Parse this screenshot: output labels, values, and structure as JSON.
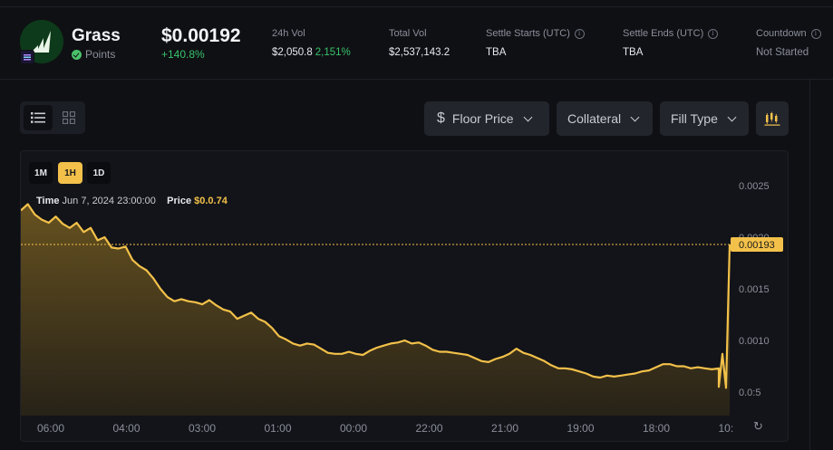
{
  "token": {
    "name": "Grass",
    "sub_label": "Points",
    "price": "$0.00192",
    "change": "+140.8%"
  },
  "stats": [
    {
      "label": "24h Vol",
      "value": "$2,050.8",
      "extra": "2,151%",
      "info": false
    },
    {
      "label": "Total Vol",
      "value": "$2,537,143.2",
      "extra": "",
      "info": false
    },
    {
      "label": "Settle Starts (UTC)",
      "value": "TBA",
      "extra": "",
      "info": true
    },
    {
      "label": "Settle Ends (UTC)",
      "value": "TBA",
      "extra": "",
      "info": true
    },
    {
      "label": "Countdown",
      "value": "Not Started",
      "extra": "",
      "info": true
    }
  ],
  "toolbar": {
    "floor_price": "Floor Price",
    "collateral": "Collateral",
    "fill_type": "Fill Type",
    "icons": {
      "list": "list-view-icon",
      "grid": "grid-view-icon",
      "dollar": "dollar-icon",
      "chart": "candlestick-chart-icon"
    }
  },
  "timeframes": [
    {
      "label": "1M",
      "active": false
    },
    {
      "label": "1H",
      "active": true
    },
    {
      "label": "1D",
      "active": false
    }
  ],
  "tooltip": {
    "time_label": "Time",
    "time_value": "Jun 7, 2024 23:00:00",
    "price_label": "Price",
    "price_value": "$0.0.74"
  },
  "colors": {
    "line": "#f3c14a",
    "positive": "#37c26a",
    "background": "#0f1014"
  },
  "chart_data": {
    "type": "area",
    "y_ticks": [
      "0.0025",
      "0.0020",
      "0.0015",
      "0.0010",
      "0.0:5"
    ],
    "y_tick_values": [
      0.0025,
      0.002,
      0.0015,
      0.001,
      0.0005
    ],
    "ylim": [
      0.0003,
      0.0027
    ],
    "x_ticks": [
      "06:00",
      "04:00",
      "03:00",
      "01:00",
      "00:00",
      "22:00",
      "21:00",
      "19:00",
      "18:00",
      "10:"
    ],
    "current_price_label": "0.00193",
    "current_price": 0.00193,
    "series": [
      {
        "values": [
          0.00226,
          0.00232,
          0.00222,
          0.00217,
          0.00214,
          0.0022,
          0.00213,
          0.00209,
          0.00214,
          0.00205,
          0.00209,
          0.00197,
          0.002,
          0.0019,
          0.00189,
          0.00191,
          0.00178,
          0.00172,
          0.00168,
          0.0016,
          0.0015,
          0.00142,
          0.00138,
          0.0014,
          0.00138,
          0.00137,
          0.00135,
          0.00139,
          0.00134,
          0.0013,
          0.00128,
          0.00121,
          0.00124,
          0.00127,
          0.00121,
          0.00118,
          0.00112,
          0.00104,
          0.00101,
          0.00097,
          0.00095,
          0.00097,
          0.00096,
          0.00092,
          0.00088,
          0.00087,
          0.00087,
          0.00089,
          0.00087,
          0.00086,
          0.0009,
          0.00093,
          0.00095,
          0.00097,
          0.00098,
          0.001,
          0.00097,
          0.00098,
          0.00095,
          0.00091,
          0.00089,
          0.00089,
          0.00088,
          0.00087,
          0.00086,
          0.00083,
          0.0008,
          0.00079,
          0.00082,
          0.00084,
          0.00087,
          0.00092,
          0.00088,
          0.00086,
          0.00083,
          0.0008,
          0.00076,
          0.00073,
          0.00073,
          0.00072,
          0.0007,
          0.00068,
          0.00065,
          0.00064,
          0.00066,
          0.00065,
          0.00066,
          0.00067,
          0.00068,
          0.0007,
          0.00071,
          0.00074,
          0.00077,
          0.00077,
          0.00075,
          0.00075,
          0.00073,
          0.00074,
          0.00073,
          0.00072,
          0.00073,
          0.00055,
          0.00087,
          0.00054,
          0.00193
        ]
      }
    ]
  }
}
